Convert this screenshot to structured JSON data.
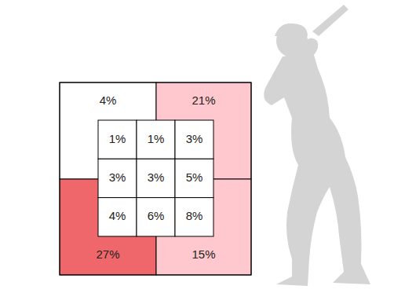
{
  "chart_data": {
    "type": "heatmap",
    "values": [
      4,
      21,
      27,
      15
    ],
    "value_labels": [
      "4%",
      "21%",
      "27%",
      "15%"
    ],
    "colors": [
      "#ffffff",
      "#ffc7ce",
      "#f0676b",
      "#ffc7ce"
    ],
    "cells": [
      [
        1,
        1,
        3
      ],
      [
        3,
        3,
        5
      ],
      [
        4,
        6,
        8
      ]
    ],
    "cell_labels": [
      [
        "1%",
        "1%",
        "3%"
      ],
      [
        "3%",
        "3%",
        "5%"
      ],
      [
        "4%",
        "6%",
        "8%"
      ]
    ],
    "color": "#ffffff",
    "data_labels": true
  }
}
